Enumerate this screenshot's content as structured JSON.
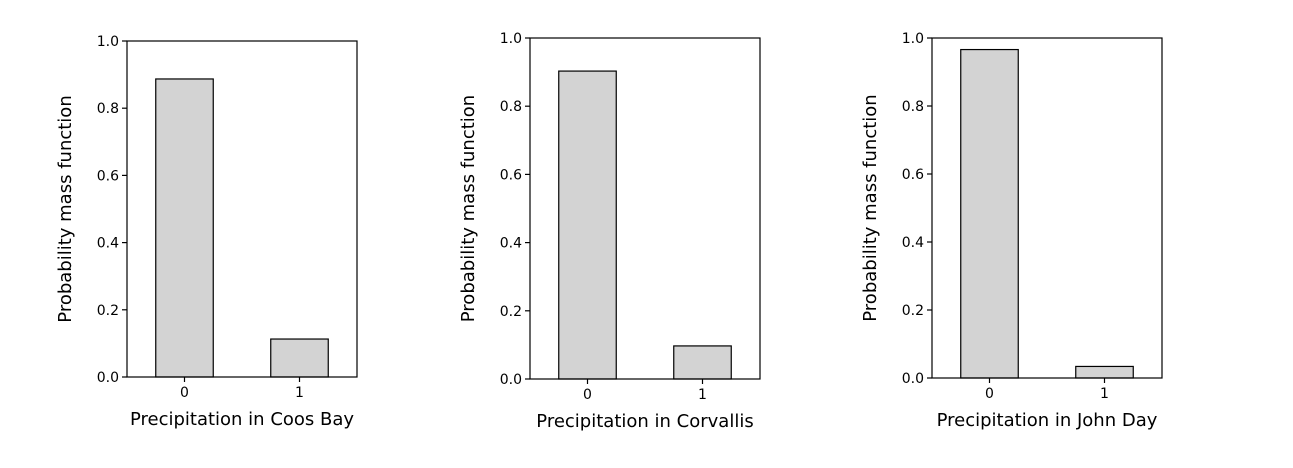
{
  "chart_data": [
    {
      "type": "bar",
      "categories": [
        "0",
        "1"
      ],
      "values": [
        0.887,
        0.113
      ],
      "xlabel": "Precipitation in Coos Bay",
      "ylabel": "Probability mass function",
      "ylim": [
        0,
        1.0
      ],
      "yticks": [
        "0.0",
        "0.2",
        "0.4",
        "0.6",
        "0.8",
        "1.0"
      ],
      "grid": false,
      "bar_color": "#d3d3d3",
      "edge_color": "#000000"
    },
    {
      "type": "bar",
      "categories": [
        "0",
        "1"
      ],
      "values": [
        0.903,
        0.097
      ],
      "xlabel": "Precipitation in Corvallis",
      "ylabel": "Probability mass function",
      "ylim": [
        0,
        1.0
      ],
      "yticks": [
        "0.0",
        "0.2",
        "0.4",
        "0.6",
        "0.8",
        "1.0"
      ],
      "grid": false,
      "bar_color": "#d3d3d3",
      "edge_color": "#000000"
    },
    {
      "type": "bar",
      "categories": [
        "0",
        "1"
      ],
      "values": [
        0.966,
        0.034
      ],
      "xlabel": "Precipitation in John Day",
      "ylabel": "Probability mass function",
      "ylim": [
        0,
        1.0
      ],
      "yticks": [
        "0.0",
        "0.2",
        "0.4",
        "0.6",
        "0.8",
        "1.0"
      ],
      "grid": false,
      "bar_color": "#d3d3d3",
      "edge_color": "#000000"
    }
  ]
}
